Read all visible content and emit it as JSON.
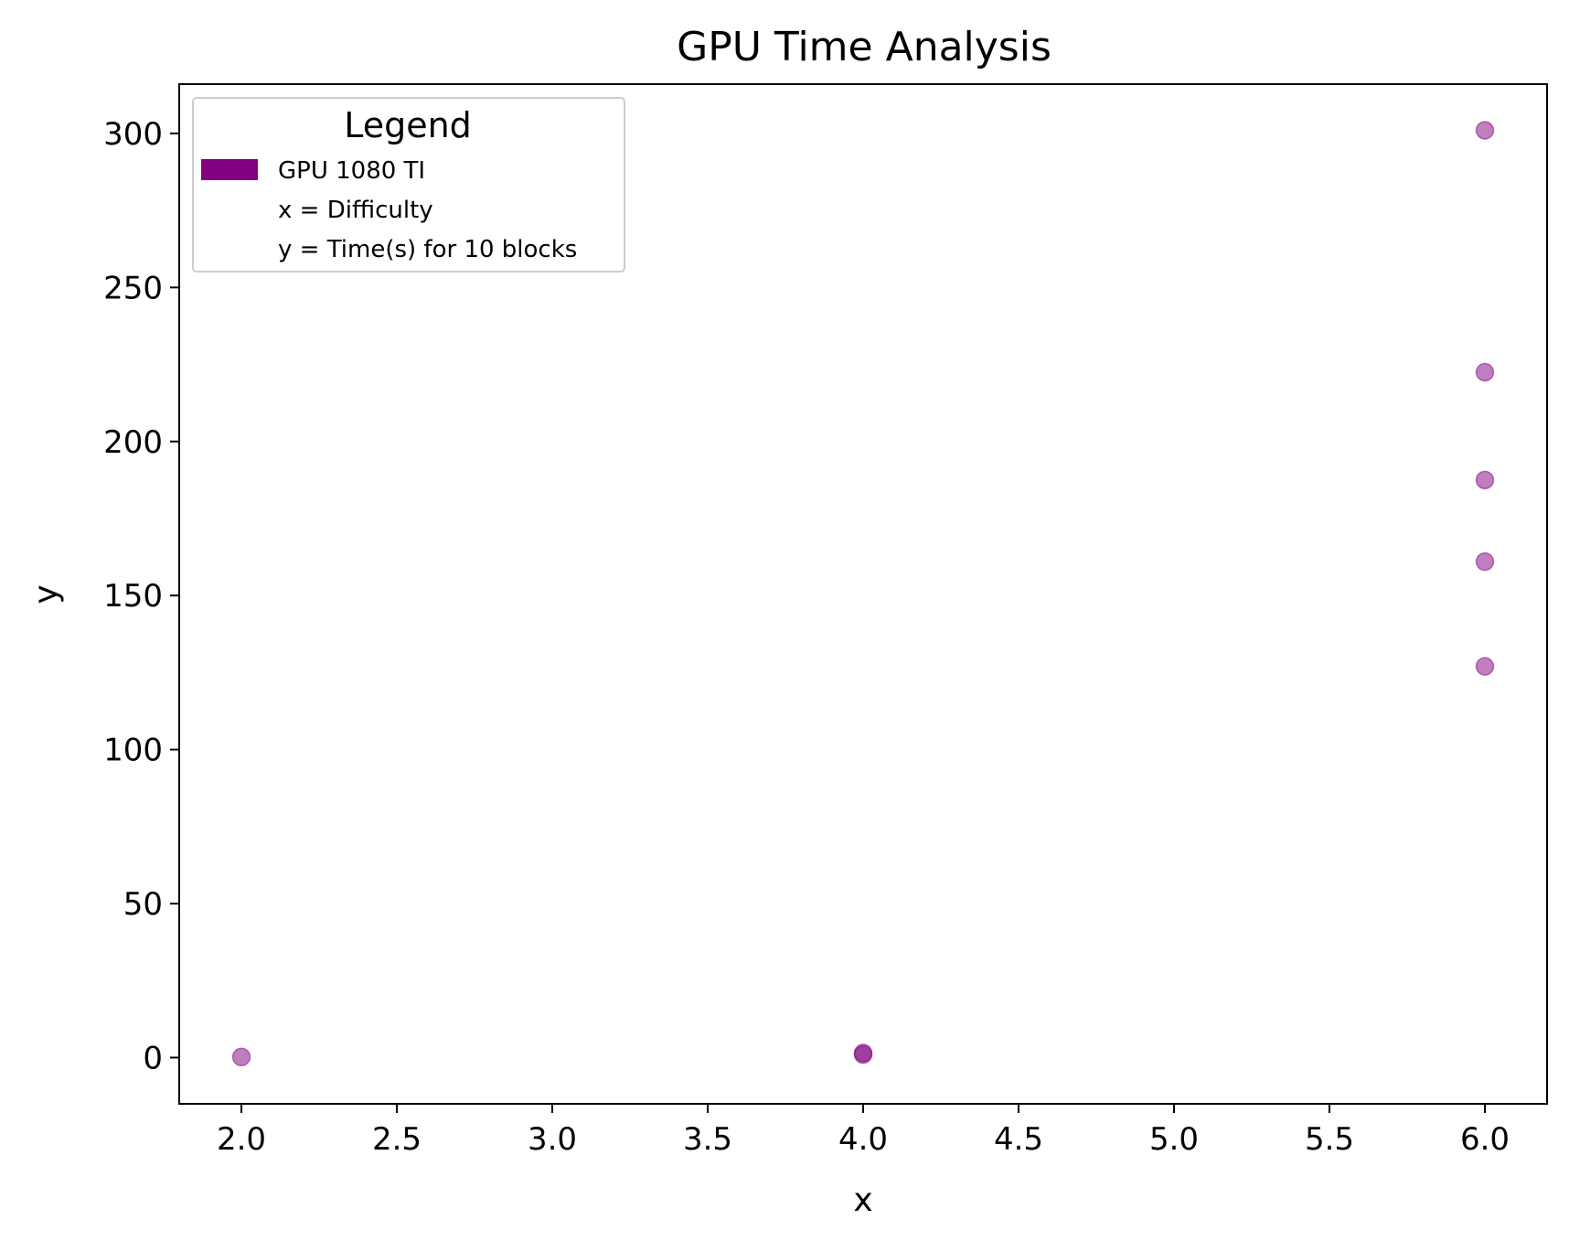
{
  "chart_data": {
    "type": "scatter",
    "title": "GPU Time Analysis",
    "xlabel": "x",
    "ylabel": "y",
    "xlim": [
      1.8,
      6.2
    ],
    "ylim": [
      -15,
      316
    ],
    "xticks": [
      "2.0",
      "2.5",
      "3.0",
      "3.5",
      "4.0",
      "4.5",
      "5.0",
      "5.5",
      "6.0"
    ],
    "yticks": [
      "0",
      "50",
      "100",
      "150",
      "200",
      "250",
      "300"
    ],
    "grid": false,
    "legend": {
      "title": "Legend",
      "position": "top-left",
      "entries": [
        "GPU 1080 TI",
        "x = Difficulty",
        "y = Time(s) for 10 blocks"
      ]
    },
    "series": [
      {
        "name": "GPU 1080 TI",
        "color": "#800080",
        "points": [
          {
            "x": 2,
            "y": 0.2
          },
          {
            "x": 4,
            "y": 1.5
          },
          {
            "x": 4,
            "y": 1.0
          },
          {
            "x": 6,
            "y": 301
          },
          {
            "x": 6,
            "y": 222.5
          },
          {
            "x": 6,
            "y": 187.5
          },
          {
            "x": 6,
            "y": 161
          },
          {
            "x": 6,
            "y": 127
          }
        ]
      }
    ]
  }
}
